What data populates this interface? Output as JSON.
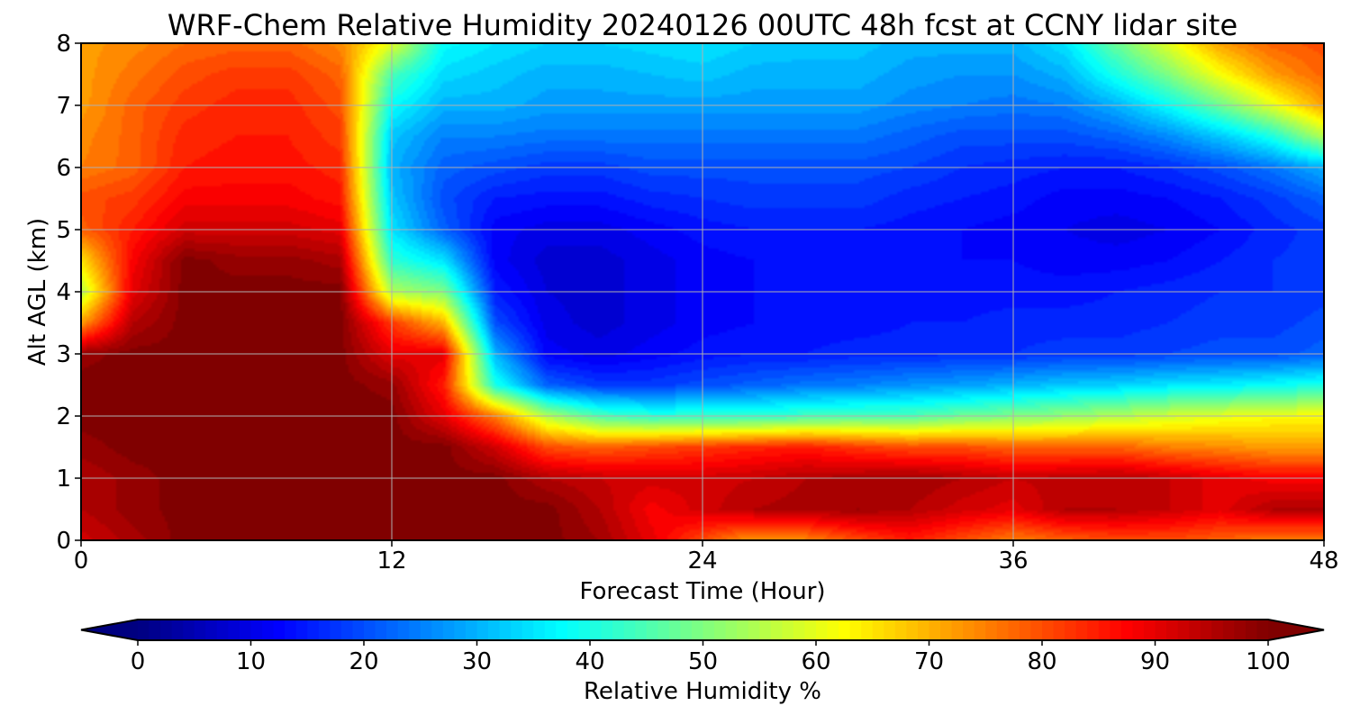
{
  "chart_data": {
    "type": "heatmap",
    "title": "WRF-Chem Relative Humidity 20240126 00UTC 48h fcst at CCNY lidar site",
    "xlabel": "Forecast Time (Hour)",
    "ylabel": "Alt AGL (km)",
    "xlim": [
      0,
      48
    ],
    "ylim": [
      0,
      8
    ],
    "x_ticks": [
      0,
      12,
      24,
      36,
      48
    ],
    "y_ticks": [
      0,
      1,
      2,
      3,
      4,
      5,
      6,
      7,
      8
    ],
    "grid": true,
    "colorbar": {
      "label": "Relative Humidity %",
      "colormap": "jet",
      "range": [
        0,
        100
      ],
      "ticks": [
        0,
        10,
        20,
        30,
        40,
        50,
        60,
        70,
        80,
        90,
        100
      ],
      "extend": "both",
      "orientation": "horizontal"
    },
    "x": [
      0,
      2,
      4,
      6,
      8,
      10,
      12,
      14,
      16,
      18,
      20,
      22,
      24,
      26,
      28,
      30,
      32,
      34,
      36,
      38,
      40,
      42,
      44,
      46,
      48
    ],
    "y": [
      0,
      0.5,
      1,
      1.5,
      2,
      2.5,
      3,
      3.5,
      4,
      4.5,
      5,
      5.5,
      6,
      6.5,
      7,
      7.5,
      8
    ],
    "z": [
      [
        92,
        96,
        100,
        100,
        100,
        100,
        100,
        100,
        100,
        100,
        97,
        90,
        80,
        72,
        74,
        80,
        85,
        80,
        75,
        78,
        80,
        80,
        78,
        75,
        75
      ],
      [
        95,
        98,
        100,
        100,
        100,
        100,
        100,
        100,
        100,
        100,
        95,
        88,
        92,
        95,
        96,
        97,
        95,
        92,
        90,
        95,
        95,
        93,
        90,
        95,
        95
      ],
      [
        95,
        98,
        100,
        100,
        100,
        100,
        100,
        100,
        100,
        95,
        93,
        92,
        92,
        93,
        95,
        96,
        97,
        95,
        93,
        94,
        95,
        93,
        90,
        88,
        88
      ],
      [
        98,
        100,
        100,
        100,
        100,
        100,
        100,
        100,
        92,
        80,
        78,
        80,
        82,
        84,
        85,
        82,
        80,
        80,
        78,
        78,
        78,
        75,
        74,
        72,
        72
      ],
      [
        100,
        100,
        100,
        100,
        100,
        100,
        100,
        90,
        75,
        55,
        45,
        42,
        42,
        42,
        44,
        45,
        45,
        48,
        50,
        52,
        55,
        58,
        60,
        62,
        62
      ],
      [
        100,
        100,
        100,
        100,
        100,
        100,
        98,
        85,
        40,
        22,
        18,
        18,
        20,
        22,
        24,
        25,
        27,
        28,
        30,
        32,
        33,
        35,
        36,
        38,
        40
      ],
      [
        98,
        100,
        100,
        100,
        100,
        100,
        90,
        90,
        30,
        12,
        10,
        12,
        14,
        15,
        15,
        16,
        16,
        17,
        17,
        18,
        18,
        19,
        20,
        20,
        22
      ],
      [
        72,
        95,
        100,
        100,
        100,
        100,
        82,
        70,
        20,
        10,
        8,
        10,
        12,
        13,
        14,
        14,
        15,
        15,
        16,
        16,
        16,
        17,
        18,
        18,
        20
      ],
      [
        55,
        90,
        100,
        100,
        100,
        100,
        55,
        50,
        15,
        9,
        8,
        10,
        12,
        13,
        14,
        14,
        15,
        14,
        14,
        14,
        15,
        16,
        17,
        17,
        18
      ],
      [
        65,
        88,
        100,
        98,
        98,
        96,
        42,
        35,
        12,
        8,
        8,
        10,
        12,
        13,
        14,
        14,
        14,
        13,
        13,
        12,
        12,
        13,
        15,
        17,
        18
      ],
      [
        78,
        85,
        92,
        92,
        92,
        90,
        35,
        22,
        12,
        10,
        10,
        12,
        14,
        15,
        15,
        15,
        14,
        13,
        12,
        11,
        10,
        11,
        13,
        16,
        18
      ],
      [
        80,
        82,
        88,
        88,
        88,
        86,
        32,
        20,
        15,
        14,
        14,
        16,
        17,
        18,
        18,
        18,
        16,
        15,
        14,
        12,
        12,
        13,
        15,
        18,
        22
      ],
      [
        75,
        78,
        85,
        86,
        86,
        84,
        30,
        22,
        20,
        18,
        18,
        20,
        20,
        20,
        20,
        20,
        19,
        17,
        16,
        15,
        15,
        17,
        20,
        24,
        30
      ],
      [
        74,
        78,
        84,
        85,
        85,
        82,
        32,
        25,
        25,
        24,
        24,
        24,
        24,
        24,
        24,
        24,
        22,
        20,
        20,
        20,
        22,
        26,
        32,
        40,
        55
      ],
      [
        72,
        78,
        82,
        84,
        84,
        80,
        38,
        30,
        30,
        28,
        28,
        28,
        28,
        28,
        28,
        28,
        26,
        25,
        24,
        25,
        30,
        38,
        48,
        60,
        72
      ],
      [
        72,
        76,
        80,
        82,
        82,
        78,
        45,
        34,
        32,
        30,
        30,
        31,
        32,
        30,
        30,
        30,
        28,
        27,
        27,
        30,
        40,
        50,
        62,
        72,
        78
      ],
      [
        72,
        74,
        77,
        78,
        78,
        74,
        60,
        38,
        35,
        33,
        33,
        34,
        35,
        33,
        32,
        32,
        30,
        30,
        30,
        35,
        48,
        60,
        72,
        78,
        80
      ]
    ]
  }
}
